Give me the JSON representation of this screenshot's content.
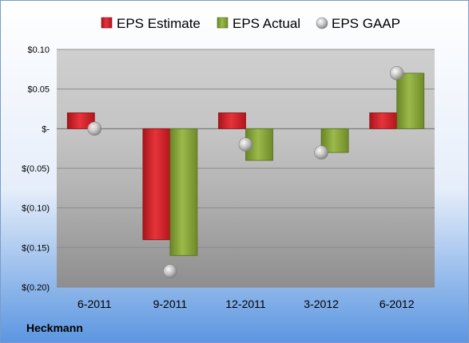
{
  "company": "Heckmann",
  "colors": {
    "estimate": "#d9262c",
    "actual": "#89a83a",
    "gaap": "#b8b8b8"
  },
  "chart_data": {
    "type": "bar",
    "categories": [
      "6-2011",
      "9-2011",
      "12-2011",
      "3-2012",
      "6-2012"
    ],
    "series": [
      {
        "name": "EPS Estimate",
        "style": "bar",
        "values": [
          0.02,
          -0.14,
          0.02,
          null,
          0.02
        ]
      },
      {
        "name": "EPS Actual",
        "style": "bar",
        "values": [
          null,
          -0.16,
          -0.04,
          -0.03,
          0.07
        ]
      },
      {
        "name": "EPS GAAP",
        "style": "scatter",
        "values": [
          0.0,
          -0.18,
          -0.02,
          -0.03,
          0.07
        ]
      }
    ],
    "ylim": [
      -0.2,
      0.1
    ],
    "yticks": [
      0.1,
      0.05,
      0,
      -0.05,
      -0.1,
      -0.15,
      -0.2
    ],
    "ytick_labels": [
      "$0.10",
      "$0.05",
      "$-",
      "$(0.05)",
      "$(0.10)",
      "$(0.15)",
      "$(0.20)"
    ],
    "grid": true,
    "legend_position": "top"
  }
}
